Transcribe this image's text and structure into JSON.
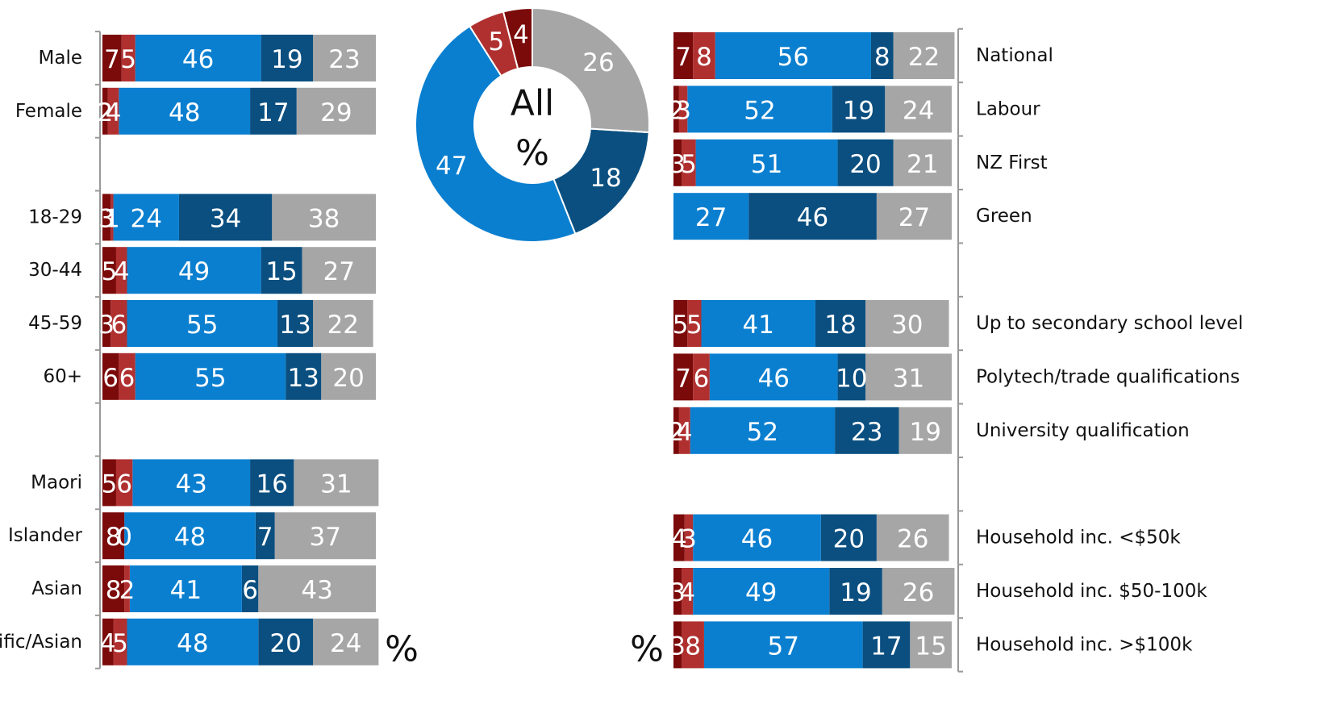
{
  "chart_data": [
    {
      "type": "pie",
      "donut": true,
      "title": "All",
      "unit": "%",
      "values": [
        26,
        18,
        47,
        5,
        4
      ],
      "colors": [
        "#a6a6a6",
        "#0a4f80",
        "#0a7fd0",
        "#b03030",
        "#7b0a0a"
      ]
    },
    {
      "type": "bar",
      "orientation": "horizontal",
      "stacked": true,
      "unit": "%",
      "xlim": [
        0,
        100
      ],
      "categories": [
        "Male",
        "Female",
        null,
        "18-29",
        "30-44",
        "45-59",
        "60+",
        null,
        "Maori",
        "Islander",
        "Asian",
        "Pacific/Asian"
      ],
      "series": [
        {
          "color": "#7b0a0a",
          "values": [
            7,
            2,
            null,
            3,
            5,
            3,
            6,
            null,
            5,
            8,
            8,
            4
          ]
        },
        {
          "color": "#b03030",
          "values": [
            5,
            4,
            null,
            1,
            4,
            6,
            6,
            null,
            6,
            0,
            2,
            5
          ]
        },
        {
          "color": "#0a7fd0",
          "values": [
            46,
            48,
            null,
            24,
            49,
            55,
            55,
            null,
            43,
            48,
            41,
            48
          ]
        },
        {
          "color": "#0a4f80",
          "values": [
            19,
            17,
            null,
            34,
            15,
            13,
            13,
            null,
            16,
            7,
            6,
            20
          ]
        },
        {
          "color": "#a6a6a6",
          "values": [
            23,
            29,
            null,
            38,
            27,
            22,
            20,
            null,
            31,
            37,
            43,
            24
          ]
        }
      ]
    },
    {
      "type": "bar",
      "orientation": "horizontal",
      "stacked": true,
      "unit": "%",
      "xlim": [
        0,
        100
      ],
      "categories": [
        "National",
        "Labour",
        "NZ First",
        "Green",
        null,
        "Up to secondary school level",
        "Polytech/trade qualifications",
        "University qualification",
        null,
        "Household inc. <$50k",
        "Household inc. $50-100k",
        "Household inc. >$100k"
      ],
      "series": [
        {
          "color": "#7b0a0a",
          "values": [
            7,
            2,
            3,
            null,
            null,
            5,
            7,
            2,
            null,
            4,
            3,
            3
          ]
        },
        {
          "color": "#b03030",
          "values": [
            8,
            3,
            5,
            null,
            null,
            5,
            6,
            4,
            null,
            3,
            4,
            8
          ]
        },
        {
          "color": "#0a7fd0",
          "values": [
            56,
            52,
            51,
            27,
            null,
            41,
            46,
            52,
            null,
            46,
            49,
            57
          ]
        },
        {
          "color": "#0a4f80",
          "values": [
            8,
            19,
            20,
            46,
            null,
            18,
            10,
            23,
            null,
            20,
            19,
            17
          ]
        },
        {
          "color": "#a6a6a6",
          "values": [
            22,
            24,
            21,
            27,
            null,
            30,
            31,
            19,
            null,
            26,
            26,
            15
          ]
        }
      ]
    }
  ]
}
